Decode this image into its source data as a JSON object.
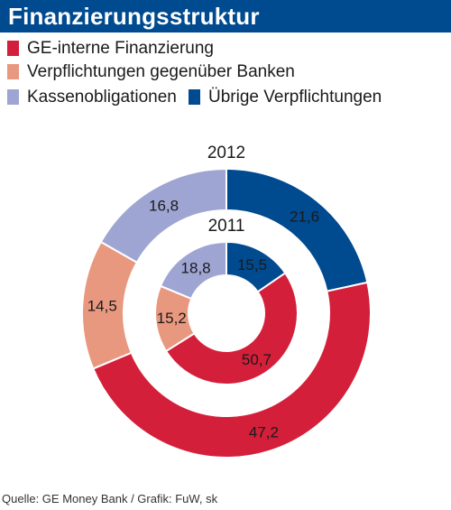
{
  "header": {
    "title": "Finanzierungsstruktur"
  },
  "legend": [
    {
      "label": "GE-interne Finanzierung",
      "color": "#d41f3a"
    },
    {
      "label": "Verpflichtungen gegenüber Banken",
      "color": "#e8987f"
    },
    {
      "label": "Kassenobligationen",
      "color": "#9fa5d3"
    },
    {
      "label": "Übrige Verpflichtungen",
      "color": "#004a8f"
    }
  ],
  "chart_data": {
    "type": "pie",
    "subtype": "nested-donut",
    "categories": [
      "Übrige Verpflichtungen",
      "GE-interne Finanzierung",
      "Verpflichtungen gegenüber Banken",
      "Kassenobligationen"
    ],
    "colors": [
      "#004a8f",
      "#d41f3a",
      "#e8987f",
      "#9fa5d3"
    ],
    "series": [
      {
        "name": "2012",
        "ring": "outer",
        "values": [
          21.6,
          47.2,
          14.5,
          16.8
        ],
        "labels": [
          "21,6",
          "47,2",
          "14,5",
          "16,8"
        ]
      },
      {
        "name": "2011",
        "ring": "inner",
        "values": [
          15.5,
          50.7,
          15.2,
          18.8
        ],
        "labels": [
          "15,5",
          "50,7",
          "15,2",
          "18,8"
        ]
      }
    ]
  },
  "footer": {
    "source": "Quelle: GE Money Bank / Grafik: FuW, sk"
  }
}
